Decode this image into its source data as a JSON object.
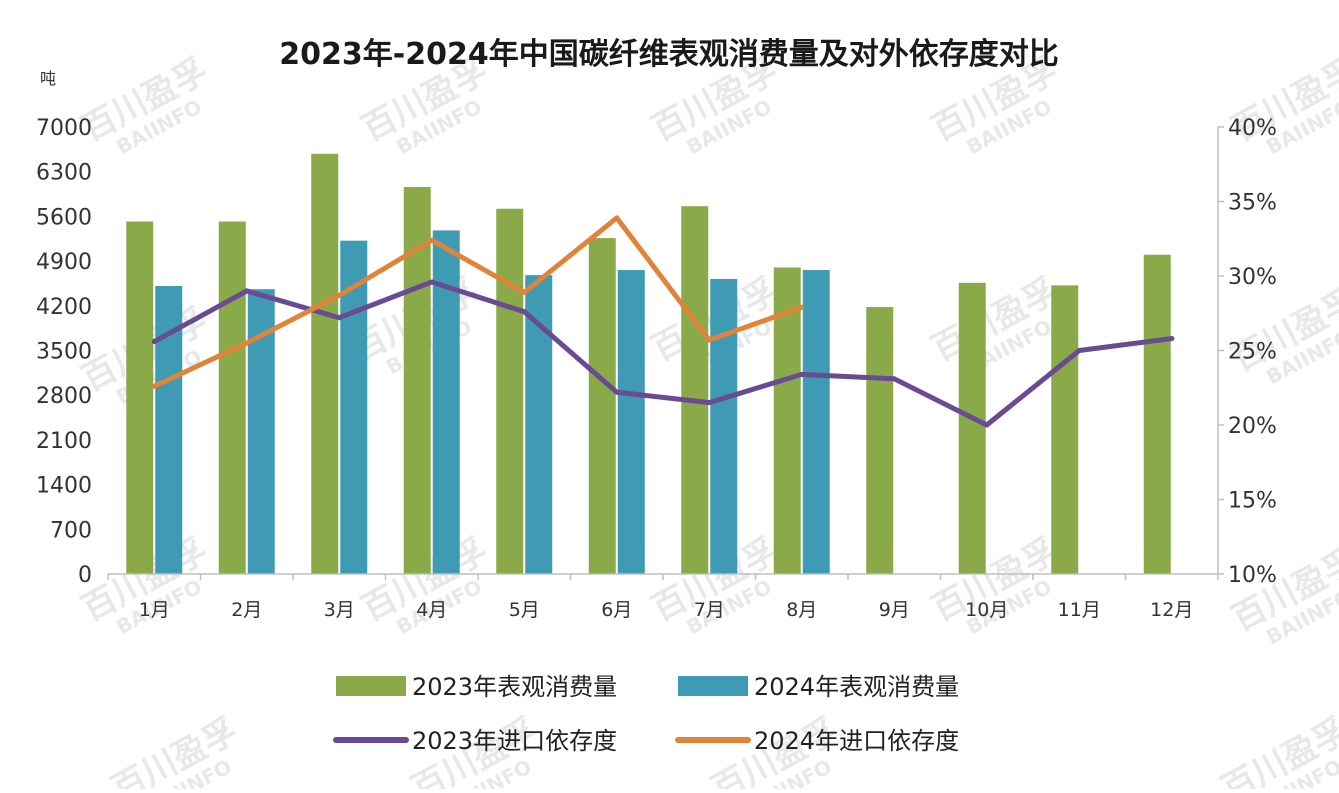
{
  "chart_data": {
    "type": "bar",
    "title": "2023年-2024年中国碳纤维表观消费量及对外依存度对比",
    "ylabel_left": "吨",
    "categories": [
      "1月",
      "2月",
      "3月",
      "4月",
      "5月",
      "6月",
      "7月",
      "8月",
      "9月",
      "10月",
      "11月",
      "12月"
    ],
    "y_left_ticks": [
      "0",
      "700",
      "1400",
      "2100",
      "2800",
      "3500",
      "4200",
      "4900",
      "5600",
      "6300",
      "7000"
    ],
    "y_right_ticks": [
      "10%",
      "15%",
      "20%",
      "25%",
      "30%",
      "35%",
      "40%"
    ],
    "ylim_left": [
      0,
      7000
    ],
    "ylim_right": [
      10,
      40
    ],
    "bar_series": [
      {
        "name": "2023年表观消费量",
        "color": "#8aaa4a",
        "values": [
          5520,
          5520,
          6580,
          6060,
          5720,
          5260,
          5760,
          4800,
          4180,
          4560,
          4520,
          5000
        ]
      },
      {
        "name": "2024年表观消费量",
        "color": "#3f9bb3",
        "values": [
          4510,
          4460,
          5220,
          5380,
          4680,
          4760,
          4620,
          4760,
          null,
          null,
          null,
          null
        ]
      }
    ],
    "line_series": [
      {
        "name": "2023年进口依存度",
        "color": "#6a4a92",
        "axis": "right",
        "values": [
          25.6,
          29.0,
          27.2,
          29.6,
          27.6,
          22.2,
          21.5,
          23.4,
          23.1,
          20.0,
          25.0,
          25.8
        ]
      },
      {
        "name": "2024年进口依存度",
        "color": "#e0843a",
        "axis": "right",
        "values": [
          22.6,
          25.5,
          28.7,
          32.4,
          28.9,
          33.9,
          25.7,
          27.9,
          null,
          null,
          null,
          null
        ]
      }
    ],
    "grid": false,
    "legend_position": "bottom"
  },
  "watermark": {
    "cn": "百川盈孚",
    "en": "BAIINFO"
  }
}
